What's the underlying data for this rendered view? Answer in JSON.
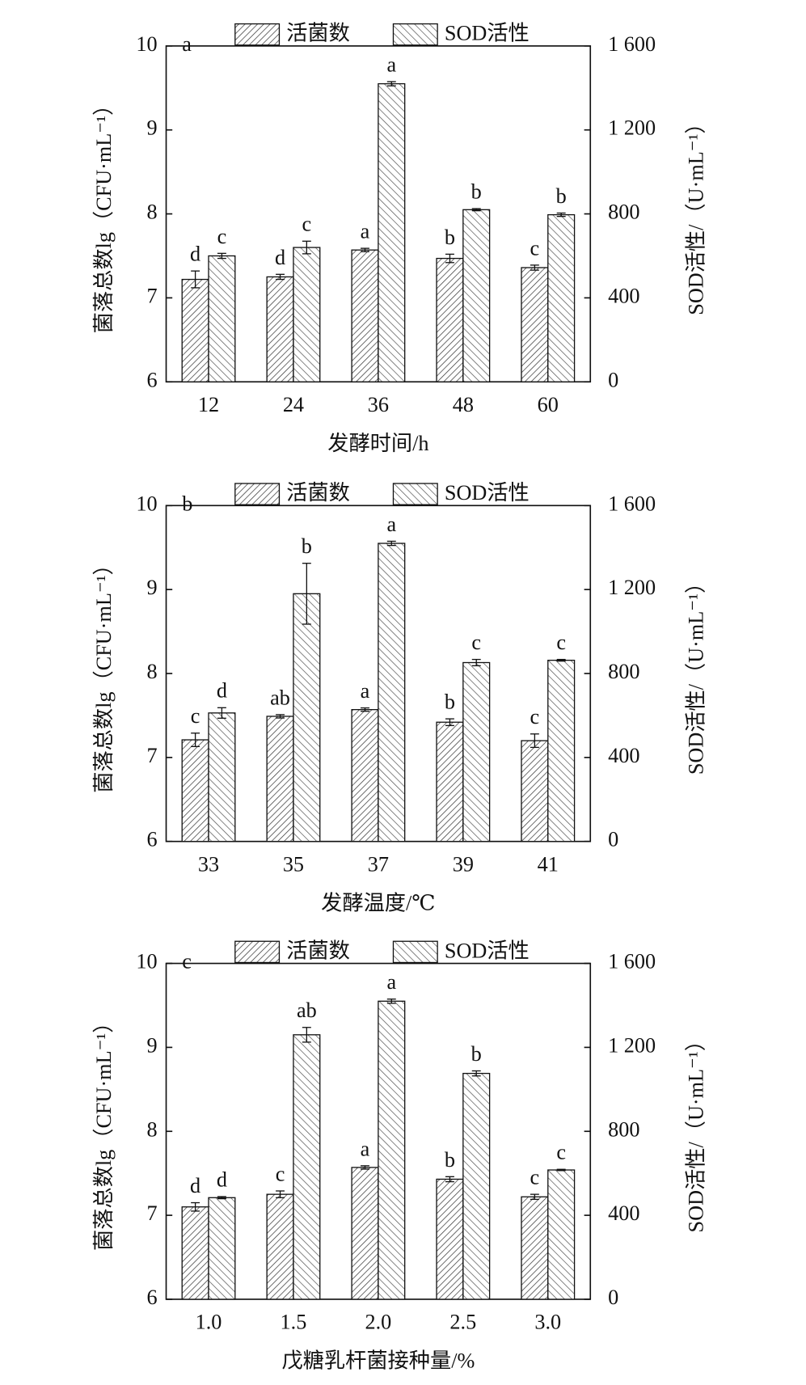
{
  "chart_data": [
    {
      "type": "bar",
      "panel_label": "a",
      "xlabel": "发酵时间/h",
      "ylabel": "菌落总数lg（CFU·mL⁻¹）",
      "y2label": "SOD活性/（U·mL⁻¹）",
      "categories": [
        "12",
        "24",
        "36",
        "48",
        "60"
      ],
      "ylim": [
        6,
        10
      ],
      "yticks": [
        6,
        7,
        8,
        9,
        10
      ],
      "y2lim": [
        0,
        1600
      ],
      "y2ticks": [
        0,
        400,
        800,
        {
          "value": 1200,
          "label": "1 200"
        },
        {
          "value": 1600,
          "label": "1 600"
        }
      ],
      "series": [
        {
          "name": "活菌数",
          "color": "#333333",
          "values": [
            7.22,
            7.25,
            7.57,
            7.47,
            7.36
          ],
          "errors": [
            0.1,
            0.03,
            0.02,
            0.05,
            0.03
          ],
          "significance": [
            "d",
            "d",
            "a",
            "b",
            "c"
          ]
        },
        {
          "name": "SOD活性",
          "color": "#555555",
          "axis": "y2",
          "values": [
            600,
            640,
            1420,
            820,
            796
          ],
          "errors": [
            12,
            30,
            10,
            5,
            8
          ],
          "significance": [
            "c",
            "c",
            "a",
            "b",
            "b"
          ]
        }
      ]
    },
    {
      "type": "bar",
      "panel_label": "b",
      "xlabel": "发酵温度/℃",
      "ylabel": "菌落总数lg（CFU·mL⁻¹）",
      "y2label": "SOD活性/（U·mL⁻¹）",
      "categories": [
        "33",
        "35",
        "37",
        "39",
        "41"
      ],
      "ylim": [
        6,
        10
      ],
      "yticks": [
        6,
        7,
        8,
        9,
        10
      ],
      "y2lim": [
        0,
        1600
      ],
      "y2ticks": [
        0,
        400,
        800,
        {
          "value": 1200,
          "label": "1 200"
        },
        {
          "value": 1600,
          "label": "1 600"
        }
      ],
      "series": [
        {
          "name": "活菌数",
          "color": "#333333",
          "values": [
            7.21,
            7.49,
            7.57,
            7.42,
            7.2
          ],
          "errors": [
            0.08,
            0.02,
            0.02,
            0.04,
            0.08
          ],
          "significance": [
            "c",
            "ab",
            "a",
            "b",
            "c"
          ]
        },
        {
          "name": "SOD活性",
          "color": "#555555",
          "axis": "y2",
          "values": [
            612,
            1180,
            1420,
            852,
            863
          ],
          "errors": [
            25,
            145,
            10,
            15,
            4
          ],
          "significance": [
            "d",
            "b",
            "a",
            "c",
            "c"
          ]
        }
      ]
    },
    {
      "type": "bar",
      "panel_label": "c",
      "xlabel": "戊糖乳杆菌接种量/%",
      "ylabel": "菌落总数lg（CFU·mL⁻¹）",
      "y2label": "SOD活性/（U·mL⁻¹）",
      "categories": [
        "1.0",
        "1.5",
        "2.0",
        "2.5",
        "3.0"
      ],
      "ylim": [
        6,
        10
      ],
      "yticks": [
        6,
        7,
        8,
        9,
        10
      ],
      "y2lim": [
        0,
        1600
      ],
      "y2ticks": [
        0,
        400,
        800,
        {
          "value": 1200,
          "label": "1 200"
        },
        {
          "value": 1600,
          "label": "1 600"
        }
      ],
      "series": [
        {
          "name": "活菌数",
          "color": "#333333",
          "values": [
            7.1,
            7.25,
            7.57,
            7.43,
            7.22
          ],
          "errors": [
            0.05,
            0.04,
            0.02,
            0.03,
            0.03
          ],
          "significance": [
            "d",
            "c",
            "a",
            "b",
            "c"
          ]
        },
        {
          "name": "SOD活性",
          "color": "#555555",
          "axis": "y2",
          "values": [
            484,
            1260,
            1420,
            1076,
            616
          ],
          "errors": [
            5,
            35,
            10,
            12,
            3
          ],
          "significance": [
            "d",
            "ab",
            "a",
            "b",
            "c"
          ]
        }
      ]
    }
  ]
}
